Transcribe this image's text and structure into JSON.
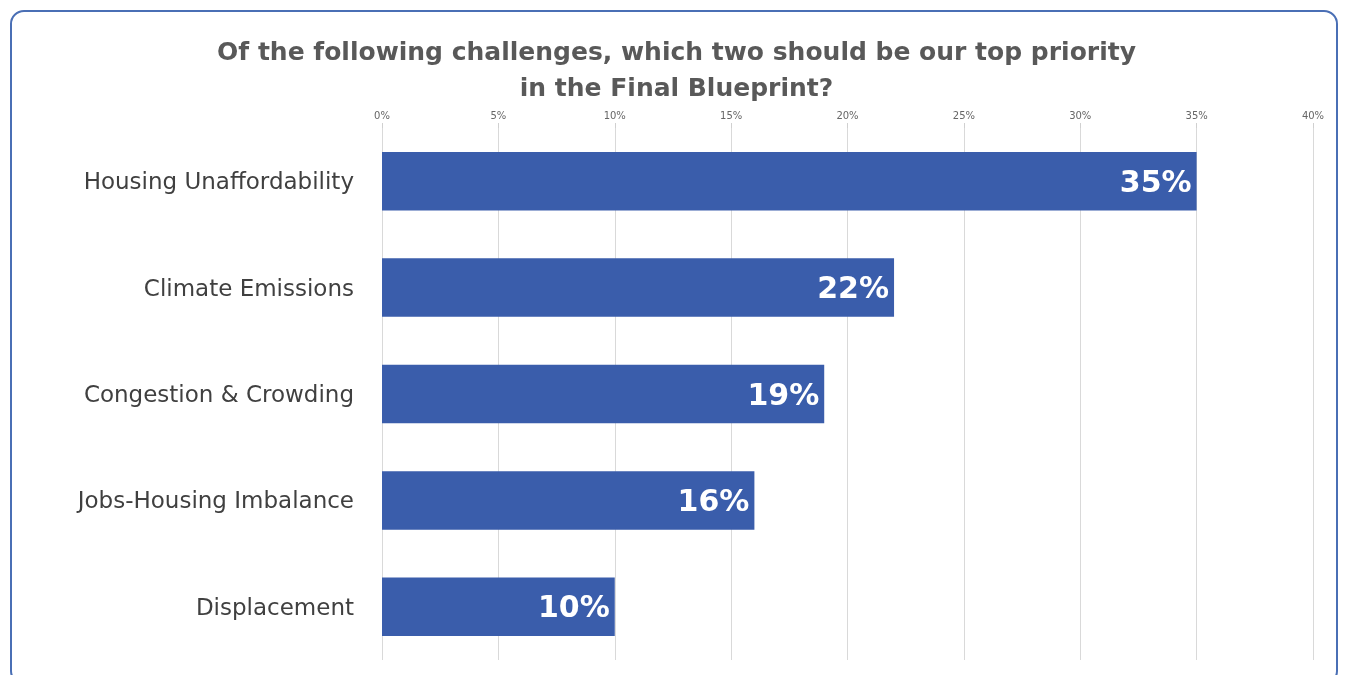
{
  "chart_data": {
    "type": "bar",
    "orientation": "horizontal",
    "title": "Of the following challenges, which two should be our top priority\nin the Final Blueprint?",
    "categories": [
      "Housing Unaffordability",
      "Climate Emissions",
      "Congestion & Crowding",
      "Jobs-Housing Imbalance",
      "Displacement"
    ],
    "values": [
      35,
      22,
      19,
      16,
      10
    ],
    "value_labels": [
      "35%",
      "22%",
      "19%",
      "16%",
      "10%"
    ],
    "color": "#3a5dab",
    "grid": "x",
    "xlim": [
      0,
      40
    ],
    "xticks": [
      {
        "value": 0,
        "label": "0%"
      },
      {
        "value": 5,
        "label": "5%"
      },
      {
        "value": 10,
        "label": "10%"
      },
      {
        "value": 15,
        "label": "15%"
      },
      {
        "value": 20,
        "label": "20%"
      },
      {
        "value": 25,
        "label": "25%"
      },
      {
        "value": 30,
        "label": "30%"
      },
      {
        "value": 35,
        "label": "35%"
      },
      {
        "value": 40,
        "label": "40%"
      }
    ]
  }
}
